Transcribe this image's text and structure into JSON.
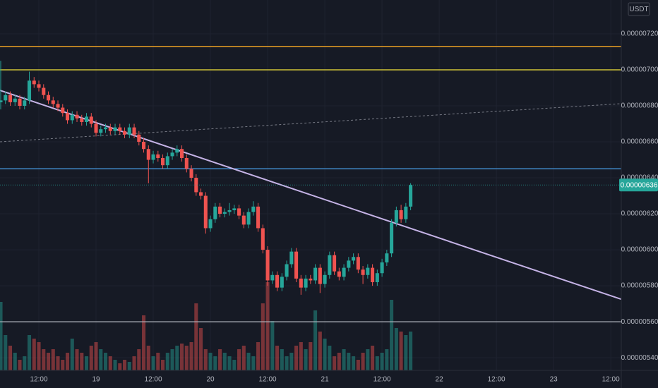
{
  "chart_data": {
    "type": "candlestick",
    "currency": "USDT",
    "x": [
      4,
      5,
      6,
      7,
      8,
      9,
      10,
      11,
      12,
      13,
      14,
      15,
      16,
      17,
      18,
      19,
      20,
      21,
      22,
      23,
      24,
      25,
      26,
      27,
      28,
      29,
      30,
      31,
      32,
      33,
      34,
      35,
      36,
      37,
      38,
      39,
      40,
      41,
      42,
      43,
      44,
      45,
      46,
      47,
      48,
      49,
      50,
      51,
      52,
      53,
      54,
      55,
      56,
      57,
      58,
      59,
      60,
      61,
      62,
      63,
      64,
      65,
      66,
      67,
      68,
      69,
      70,
      71,
      72,
      73,
      74,
      75,
      76,
      77,
      78,
      79,
      80,
      81,
      82,
      83,
      84,
      85,
      86,
      87,
      88,
      89,
      90
    ],
    "open": [
      6.82e-06,
      6.83e-06,
      6.86e-06,
      6.82e-06,
      6.84e-06,
      6.8e-06,
      6.83e-06,
      6.94e-06,
      6.92e-06,
      6.9e-06,
      6.86e-06,
      6.83e-06,
      6.81e-06,
      6.79e-06,
      6.76e-06,
      6.72e-06,
      6.75e-06,
      6.73e-06,
      6.71e-06,
      6.74e-06,
      6.7e-06,
      6.65e-06,
      6.67e-06,
      6.68e-06,
      6.66e-06,
      6.68e-06,
      6.66e-06,
      6.64e-06,
      6.68e-06,
      6.64e-06,
      6.6e-06,
      6.56e-06,
      6.5e-06,
      6.53e-06,
      6.51e-06,
      6.47e-06,
      6.52e-06,
      6.54e-06,
      6.56e-06,
      6.51e-06,
      6.45e-06,
      6.4e-06,
      6.32e-06,
      6.3e-06,
      6.12e-06,
      6.17e-06,
      6.24e-06,
      6.2e-06,
      6.21e-06,
      6.22e-06,
      6.23e-06,
      6.19e-06,
      6.14e-06,
      6.21e-06,
      6.24e-06,
      6.12e-06,
      6e-06,
      5.83e-06,
      5.86e-06,
      5.79e-06,
      5.85e-06,
      5.92e-06,
      5.99e-06,
      5.84e-06,
      5.79e-06,
      5.84e-06,
      5.83e-06,
      5.9e-06,
      5.81e-06,
      5.86e-06,
      5.97e-06,
      5.88e-06,
      5.85e-06,
      5.9e-06,
      5.94e-06,
      5.96e-06,
      5.89e-06,
      5.86e-06,
      5.9e-06,
      5.82e-06,
      5.87e-06,
      5.93e-06,
      5.98e-06,
      6.15e-06,
      6.22e-06,
      6.17e-06,
      6.24e-06
    ],
    "high": [
      7.05e-06,
      6.88e-06,
      6.88e-06,
      6.86e-06,
      6.86e-06,
      6.85e-06,
      6.99e-06,
      6.96e-06,
      6.94e-06,
      6.92e-06,
      6.88e-06,
      6.85e-06,
      6.83e-06,
      6.81e-06,
      6.78e-06,
      6.77e-06,
      6.77e-06,
      6.75e-06,
      6.76e-06,
      6.76e-06,
      6.72e-06,
      6.69e-06,
      6.7e-06,
      6.7e-06,
      6.7e-06,
      6.7e-06,
      6.68e-06,
      6.7e-06,
      6.7e-06,
      6.66e-06,
      6.62e-06,
      6.58e-06,
      6.55e-06,
      6.55e-06,
      6.53e-06,
      6.54e-06,
      6.56e-06,
      6.58e-06,
      6.58e-06,
      6.53e-06,
      6.47e-06,
      6.42e-06,
      6.34e-06,
      6.32e-06,
      6.19e-06,
      6.26e-06,
      6.26e-06,
      6.23e-06,
      6.26e-06,
      6.25e-06,
      6.25e-06,
      6.21e-06,
      6.23e-06,
      6.27e-06,
      6.26e-06,
      6.14e-06,
      6.02e-06,
      5.88e-06,
      5.88e-06,
      5.87e-06,
      5.94e-06,
      6.01e-06,
      6.01e-06,
      5.86e-06,
      5.86e-06,
      5.86e-06,
      5.92e-06,
      5.92e-06,
      5.88e-06,
      5.99e-06,
      5.99e-06,
      5.9e-06,
      5.92e-06,
      5.96e-06,
      5.98e-06,
      5.98e-06,
      5.91e-06,
      5.92e-06,
      5.92e-06,
      5.89e-06,
      5.95e-06,
      6e-06,
      6.17e-06,
      6.24e-06,
      6.25e-06,
      6.26e-06,
      6.37e-06
    ],
    "low": [
      6.78e-06,
      6.81e-06,
      6.8e-06,
      6.8e-06,
      6.78e-06,
      6.78e-06,
      6.81e-06,
      6.9e-06,
      6.88e-06,
      6.84e-06,
      6.81e-06,
      6.79e-06,
      6.77e-06,
      6.74e-06,
      6.7e-06,
      6.7e-06,
      6.71e-06,
      6.69e-06,
      6.69e-06,
      6.68e-06,
      6.63e-06,
      6.63e-06,
      6.65e-06,
      6.64e-06,
      6.64e-06,
      6.64e-06,
      6.62e-06,
      6.62e-06,
      6.62e-06,
      6.58e-06,
      6.54e-06,
      6.37e-06,
      6.48e-06,
      6.49e-06,
      6.45e-06,
      6.45e-06,
      6.5e-06,
      6.52e-06,
      6.49e-06,
      6.43e-06,
      6.38e-06,
      6.3e-06,
      6.28e-06,
      6.09e-06,
      6.1e-06,
      6.15e-06,
      6.18e-06,
      6.18e-06,
      6.19e-06,
      6.2e-06,
      6.17e-06,
      6.12e-06,
      6.12e-06,
      6.19e-06,
      6.1e-06,
      5.98e-06,
      5.8e-06,
      5.81e-06,
      5.77e-06,
      5.77e-06,
      5.83e-06,
      5.9e-06,
      5.82e-06,
      5.75e-06,
      5.77e-06,
      5.81e-06,
      5.81e-06,
      5.76e-06,
      5.79e-06,
      5.84e-06,
      5.86e-06,
      5.83e-06,
      5.83e-06,
      5.88e-06,
      5.92e-06,
      5.87e-06,
      5.81e-06,
      5.84e-06,
      5.8e-06,
      5.8e-06,
      5.85e-06,
      5.91e-06,
      5.96e-06,
      6.13e-06,
      6.15e-06,
      6.15e-06,
      6.22e-06
    ],
    "close": [
      6.83e-06,
      6.86e-06,
      6.82e-06,
      6.84e-06,
      6.8e-06,
      6.83e-06,
      6.94e-06,
      6.92e-06,
      6.9e-06,
      6.86e-06,
      6.83e-06,
      6.81e-06,
      6.79e-06,
      6.76e-06,
      6.72e-06,
      6.75e-06,
      6.73e-06,
      6.71e-06,
      6.74e-06,
      6.7e-06,
      6.65e-06,
      6.67e-06,
      6.68e-06,
      6.66e-06,
      6.68e-06,
      6.66e-06,
      6.64e-06,
      6.68e-06,
      6.64e-06,
      6.6e-06,
      6.56e-06,
      6.5e-06,
      6.53e-06,
      6.51e-06,
      6.47e-06,
      6.52e-06,
      6.54e-06,
      6.56e-06,
      6.51e-06,
      6.45e-06,
      6.4e-06,
      6.32e-06,
      6.3e-06,
      6.12e-06,
      6.17e-06,
      6.24e-06,
      6.2e-06,
      6.21e-06,
      6.22e-06,
      6.23e-06,
      6.19e-06,
      6.14e-06,
      6.21e-06,
      6.24e-06,
      6.12e-06,
      6e-06,
      5.83e-06,
      5.86e-06,
      5.79e-06,
      5.85e-06,
      5.92e-06,
      5.99e-06,
      5.84e-06,
      5.79e-06,
      5.84e-06,
      5.83e-06,
      5.9e-06,
      5.81e-06,
      5.86e-06,
      5.97e-06,
      5.88e-06,
      5.85e-06,
      5.9e-06,
      5.94e-06,
      5.96e-06,
      5.89e-06,
      5.86e-06,
      5.9e-06,
      5.82e-06,
      5.87e-06,
      5.93e-06,
      5.98e-06,
      6.15e-06,
      6.22e-06,
      6.17e-06,
      6.24e-06,
      6.36e-06
    ],
    "volume": [
      97,
      50,
      35,
      25,
      15,
      20,
      50,
      45,
      40,
      30,
      25,
      30,
      20,
      15,
      25,
      45,
      30,
      25,
      20,
      35,
      40,
      30,
      25,
      20,
      15,
      10,
      15,
      12,
      20,
      30,
      78,
      35,
      20,
      25,
      15,
      25,
      30,
      35,
      38,
      35,
      40,
      95,
      60,
      30,
      25,
      20,
      30,
      25,
      20,
      15,
      30,
      35,
      25,
      20,
      40,
      95,
      125,
      70,
      35,
      30,
      20,
      25,
      35,
      40,
      30,
      40,
      85,
      55,
      45,
      35,
      20,
      25,
      30,
      25,
      20,
      15,
      25,
      30,
      35,
      20,
      25,
      30,
      100,
      60,
      55,
      50,
      55
    ],
    "up_color": "#26a69a",
    "down_color": "#ef5350",
    "xlim": [
      3.85,
      134.2
    ],
    "xticks": [
      {
        "value": 12,
        "label": "12:00"
      },
      {
        "value": 24,
        "label": "19"
      },
      {
        "value": 36,
        "label": "12:00"
      },
      {
        "value": 48,
        "label": "20"
      },
      {
        "value": 60,
        "label": "12:00"
      },
      {
        "value": 72,
        "label": "21"
      },
      {
        "value": 84,
        "label": "12:00"
      },
      {
        "value": 96,
        "label": "22"
      },
      {
        "value": 108,
        "label": "12:00"
      },
      {
        "value": 120,
        "label": "23"
      },
      {
        "value": 132,
        "label": "12:00"
      }
    ],
    "ylim": [
      5.33e-06,
      7.388e-06
    ],
    "yticks": [
      {
        "value": 5.4e-06,
        "label": "0.00000540"
      },
      {
        "value": 5.6e-06,
        "label": "0.00000560"
      },
      {
        "value": 5.8e-06,
        "label": "0.00000580"
      },
      {
        "value": 6e-06,
        "label": "0.00000600"
      },
      {
        "value": 6.2e-06,
        "label": "0.00000620"
      },
      {
        "value": 6.4e-06,
        "label": "0.00000640"
      },
      {
        "value": 6.6e-06,
        "label": "0.00000660"
      },
      {
        "value": 6.8e-06,
        "label": "0.00000680"
      },
      {
        "value": 7e-06,
        "label": "0.00000700"
      },
      {
        "value": 7.2e-06,
        "label": "0.00000720"
      }
    ],
    "grid": true,
    "last_price": {
      "value": 6.36e-06,
      "label": "0.00000636"
    },
    "hlines": [
      {
        "value": 7.13e-06,
        "color": "#f5a623"
      },
      {
        "value": 7e-06,
        "color": "#f3e33b"
      },
      {
        "value": 6.45e-06,
        "color": "#4aa3f0"
      },
      {
        "value": 5.6e-06,
        "color": "#b2b5be"
      }
    ],
    "trendlines": [
      {
        "x": [
          3.85,
          134.2
        ],
        "y": [
          6.886e-06,
          5.725e-06
        ],
        "color": "#c5b3e6",
        "dashed": false
      },
      {
        "x": [
          3.85,
          134.2
        ],
        "y": [
          6.6e-06,
          6.812e-06
        ],
        "color": "#787b86",
        "dashed": true
      }
    ]
  }
}
